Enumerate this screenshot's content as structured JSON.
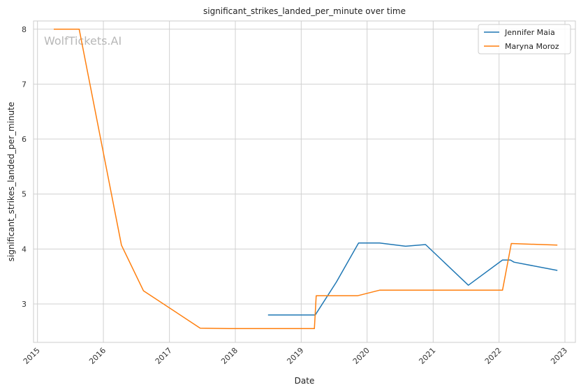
{
  "chart_data": {
    "type": "line",
    "title": "significant_strikes_landed_per_minute over time",
    "xlabel": "Date",
    "ylabel": "significant_strikes_landed_per_minute",
    "watermark": "WolfTickets.AI",
    "x_ticks": [
      "2015",
      "2016",
      "2017",
      "2018",
      "2019",
      "2020",
      "2021",
      "2022",
      "2023"
    ],
    "y_ticks": [
      "3",
      "4",
      "5",
      "6",
      "7",
      "8"
    ],
    "xlim": [
      "2014-12-10",
      "2023-02-28"
    ],
    "ylim": [
      2.3,
      8.15
    ],
    "grid": true,
    "legend_position": "top-right",
    "series": [
      {
        "name": "Jennifer Maia",
        "color": "#1f77b4",
        "points": [
          {
            "x": "2018-07-01",
            "y": 2.8
          },
          {
            "x": "2019-03-20",
            "y": 2.8
          },
          {
            "x": "2019-07-15",
            "y": 3.4
          },
          {
            "x": "2019-11-15",
            "y": 4.11
          },
          {
            "x": "2020-03-10",
            "y": 4.11
          },
          {
            "x": "2020-08-01",
            "y": 4.05
          },
          {
            "x": "2020-11-20",
            "y": 4.08
          },
          {
            "x": "2021-07-15",
            "y": 3.34
          },
          {
            "x": "2022-01-20",
            "y": 3.8
          },
          {
            "x": "2022-03-05",
            "y": 3.8
          },
          {
            "x": "2022-03-25",
            "y": 3.76
          },
          {
            "x": "2022-11-20",
            "y": 3.61
          }
        ]
      },
      {
        "name": "Maryna Moroz",
        "color": "#ff7f0e",
        "points": [
          {
            "x": "2015-04-01",
            "y": 8.0
          },
          {
            "x": "2015-08-20",
            "y": 8.0
          },
          {
            "x": "2016-04-10",
            "y": 4.07
          },
          {
            "x": "2016-08-10",
            "y": 3.24
          },
          {
            "x": "2017-06-20",
            "y": 2.56
          },
          {
            "x": "2017-12-01",
            "y": 2.55
          },
          {
            "x": "2019-03-15",
            "y": 2.55
          },
          {
            "x": "2019-03-25",
            "y": 3.15
          },
          {
            "x": "2019-11-10",
            "y": 3.15
          },
          {
            "x": "2020-03-10",
            "y": 3.25
          },
          {
            "x": "2022-01-20",
            "y": 3.25
          },
          {
            "x": "2022-03-10",
            "y": 4.1
          },
          {
            "x": "2022-11-20",
            "y": 4.07
          }
        ]
      }
    ]
  }
}
